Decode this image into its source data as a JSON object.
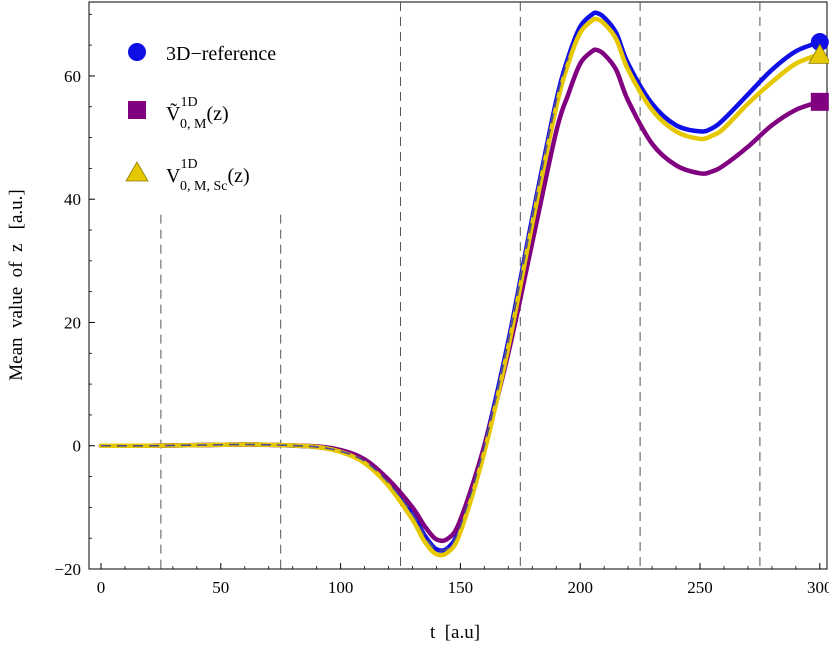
{
  "chart_data": {
    "type": "line",
    "xlabel": "t  [a.u]",
    "ylabel": "Mean  value  of  z   [a.u.]",
    "xlim": [
      -5,
      303
    ],
    "ylim": [
      -20,
      72
    ],
    "x_ticks": [
      0,
      50,
      100,
      150,
      200,
      250,
      300
    ],
    "y_ticks": [
      -20,
      0,
      20,
      40,
      60
    ],
    "vertical_dashed_lines": [
      25,
      75,
      125,
      175,
      225,
      275
    ],
    "legend_position": "top-left",
    "series": [
      {
        "name": "3D−reference",
        "marker": "circle",
        "color": "#1010e6",
        "x": [
          0,
          20,
          40,
          60,
          75,
          90,
          100,
          110,
          120,
          130,
          135,
          140,
          145,
          150,
          160,
          170,
          180,
          190,
          195,
          200,
          205,
          207,
          210,
          215,
          220,
          230,
          240,
          250,
          255,
          260,
          270,
          280,
          290,
          300
        ],
        "y": [
          0,
          0,
          0.1,
          0.2,
          0.1,
          -0.2,
          -0.9,
          -2.5,
          -6,
          -11,
          -14.5,
          -16.8,
          -16.5,
          -13,
          0,
          17,
          37,
          56,
          63,
          68,
          70,
          70.2,
          69.5,
          67,
          62,
          55.5,
          52,
          51,
          51.5,
          53,
          57,
          61,
          64,
          65.5
        ]
      },
      {
        "name": "Ṽ",
        "sub": "0, M",
        "sup": "1D",
        "suffix": "(z)",
        "marker": "square",
        "color": "#800080",
        "x": [
          0,
          20,
          40,
          60,
          75,
          90,
          100,
          110,
          120,
          130,
          135,
          140,
          145,
          150,
          160,
          170,
          180,
          190,
          195,
          200,
          205,
          207,
          210,
          215,
          220,
          230,
          240,
          250,
          255,
          260,
          270,
          280,
          290,
          300
        ],
        "y": [
          0,
          0,
          0.1,
          0.2,
          0.1,
          -0.1,
          -0.7,
          -2.2,
          -5.5,
          -10,
          -13,
          -15.2,
          -15,
          -12,
          0,
          15,
          33,
          51,
          57,
          62,
          64,
          64.2,
          63.5,
          61,
          56,
          49,
          45.5,
          44.2,
          44.5,
          45.5,
          48.5,
          52,
          54.5,
          55.8
        ]
      },
      {
        "name": "V",
        "sub": "0, M, Sc",
        "sup": "1D",
        "suffix": "(z)",
        "marker": "triangle",
        "color": "#e6c800",
        "x": [
          0,
          20,
          40,
          60,
          75,
          90,
          100,
          110,
          120,
          130,
          135,
          140,
          145,
          150,
          160,
          170,
          180,
          190,
          195,
          200,
          205,
          207,
          210,
          215,
          220,
          230,
          240,
          250,
          255,
          260,
          270,
          280,
          290,
          300
        ],
        "y": [
          0,
          0,
          0.1,
          0.2,
          0.1,
          -0.2,
          -1,
          -2.8,
          -6.5,
          -12,
          -15.5,
          -17.6,
          -17.2,
          -14,
          -1,
          16,
          36,
          55,
          62,
          67,
          69,
          69.2,
          68.5,
          66,
          61,
          54.5,
          51,
          49.8,
          50.3,
          51.5,
          55.5,
          59,
          62,
          63.5
        ]
      }
    ]
  }
}
